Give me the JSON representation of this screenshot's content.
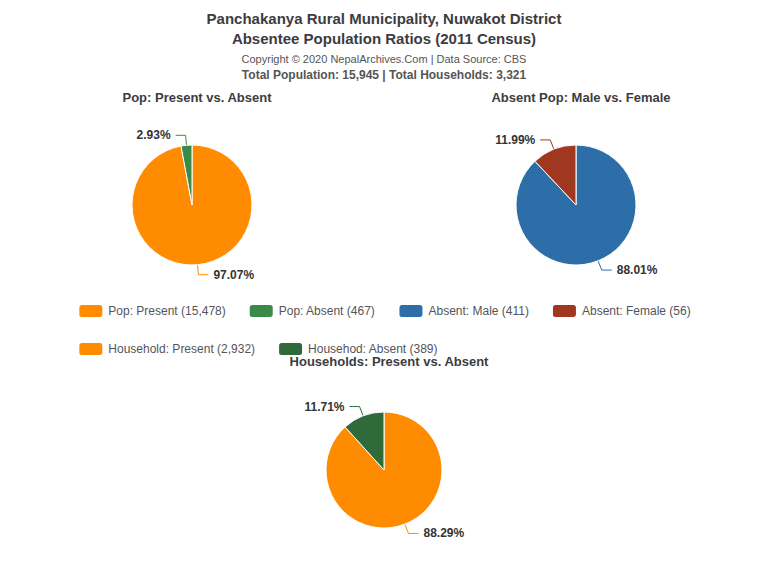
{
  "title": "Panchakanya Rural Municipality, Nuwakot District",
  "subtitle": "Absentee Population Ratios (2011 Census)",
  "annotations": [
    "Copyright © 2020 NepalArchives.Com | Data Source: CBS",
    "Total Population: 15,945 | Total Households: 3,321"
  ],
  "legend": "center",
  "chart_data": [
    {
      "type": "pie",
      "title": "Pop: Present vs. Absent",
      "categories": [
        "Pop: Present (15,478)",
        "Pop: Absent (467)"
      ],
      "values": [
        97.07,
        2.93
      ],
      "value_labels": [
        "97.07%",
        "2.93%"
      ],
      "colors": [
        "#FF8C00",
        "#3A8A4A"
      ],
      "data_labels": true
    },
    {
      "type": "pie",
      "title": "Absent Pop: Male vs. Female",
      "categories": [
        "Absent: Male (411)",
        "Absent: Female (56)"
      ],
      "values": [
        88.01,
        11.99
      ],
      "value_labels": [
        "88.01%",
        "11.99%"
      ],
      "colors": [
        "#2E6EA8",
        "#A03820"
      ],
      "data_labels": true
    },
    {
      "type": "pie",
      "title": "Households: Present vs. Absent",
      "categories": [
        "Household: Present (2,932)",
        "Househod: Absent (389)"
      ],
      "values": [
        88.29,
        11.71
      ],
      "value_labels": [
        "88.29%",
        "11.71%"
      ],
      "colors": [
        "#FF8C00",
        "#2E6A3A"
      ],
      "data_labels": true
    }
  ]
}
